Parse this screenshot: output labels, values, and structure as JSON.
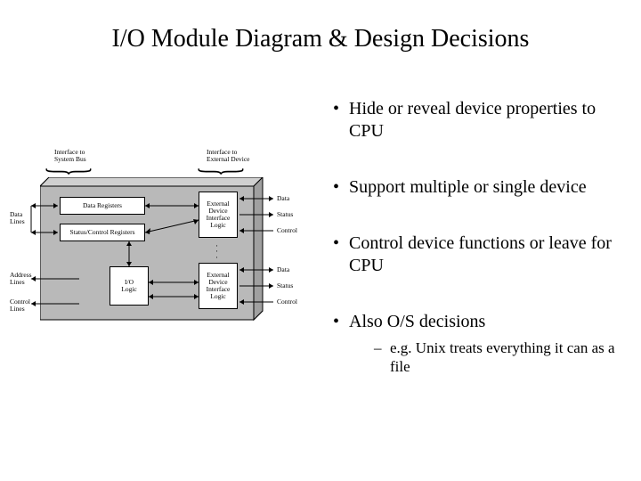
{
  "title": "I/O Module Diagram & Design Decisions",
  "bullets": {
    "b1": "Hide or reveal device properties to CPU",
    "b2": "Support multiple or single device",
    "b3": "Control device functions or leave for CPU",
    "b4": "Also O/S decisions",
    "b4_sub": "e.g. Unix treats everything it can as a file"
  },
  "diagram": {
    "top_left_label": "Interface to\nSystem Bus",
    "top_right_label": "Interface to\nExternal Device",
    "left_labels": {
      "data": "Data\nLines",
      "address": "Address\nLines",
      "control": "Control\nLines"
    },
    "right_labels_1": {
      "data": "Data",
      "status": "Status",
      "control": "Control"
    },
    "right_labels_2": {
      "data": "Data",
      "status": "Status",
      "control": "Control"
    },
    "boxes": {
      "data_reg": "Data Registers",
      "stat_ctrl": "Status/Control Registers",
      "io_logic": "I/O\nLogic",
      "ext1": "External\nDevice\nInterface\nLogic",
      "ext2": "External\nDevice\nInterface\nLogic"
    },
    "colors": {
      "module_fill": "#b9b9b9",
      "module_top": "#d0d0d0",
      "module_side": "#a0a0a0",
      "inner_fill": "#ffffff",
      "line": "#000000",
      "background": "#ffffff"
    },
    "fontsize_labels": 7.5
  }
}
